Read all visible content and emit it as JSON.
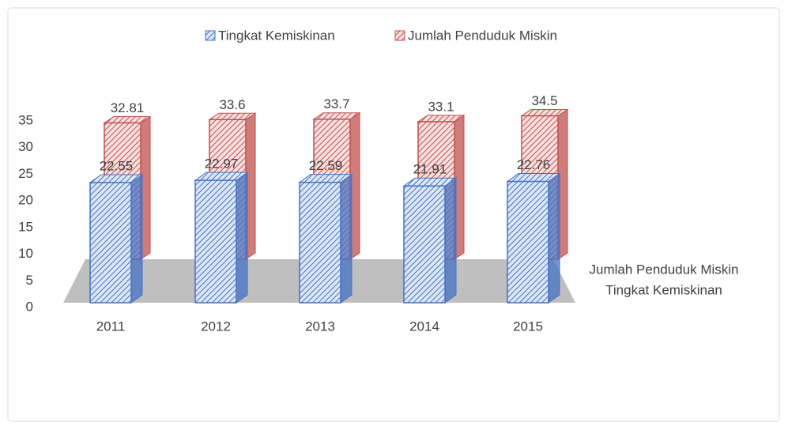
{
  "chart_data": {
    "type": "bar3d",
    "categories": [
      "2011",
      "2012",
      "2013",
      "2014",
      "2015"
    ],
    "series": [
      {
        "name": "Tingkat Kemiskinan",
        "color": "#4472c4",
        "values": [
          22.55,
          22.97,
          22.59,
          21.91,
          22.76
        ]
      },
      {
        "name": "Jumlah Penduduk Miskin",
        "color": "#c0504d",
        "values": [
          32.81,
          33.6,
          33.7,
          33.1,
          34.5
        ]
      }
    ],
    "ylim": [
      0,
      35
    ],
    "yticks": [
      0,
      5,
      10,
      15,
      20,
      25,
      30,
      35
    ],
    "legend": "top"
  }
}
